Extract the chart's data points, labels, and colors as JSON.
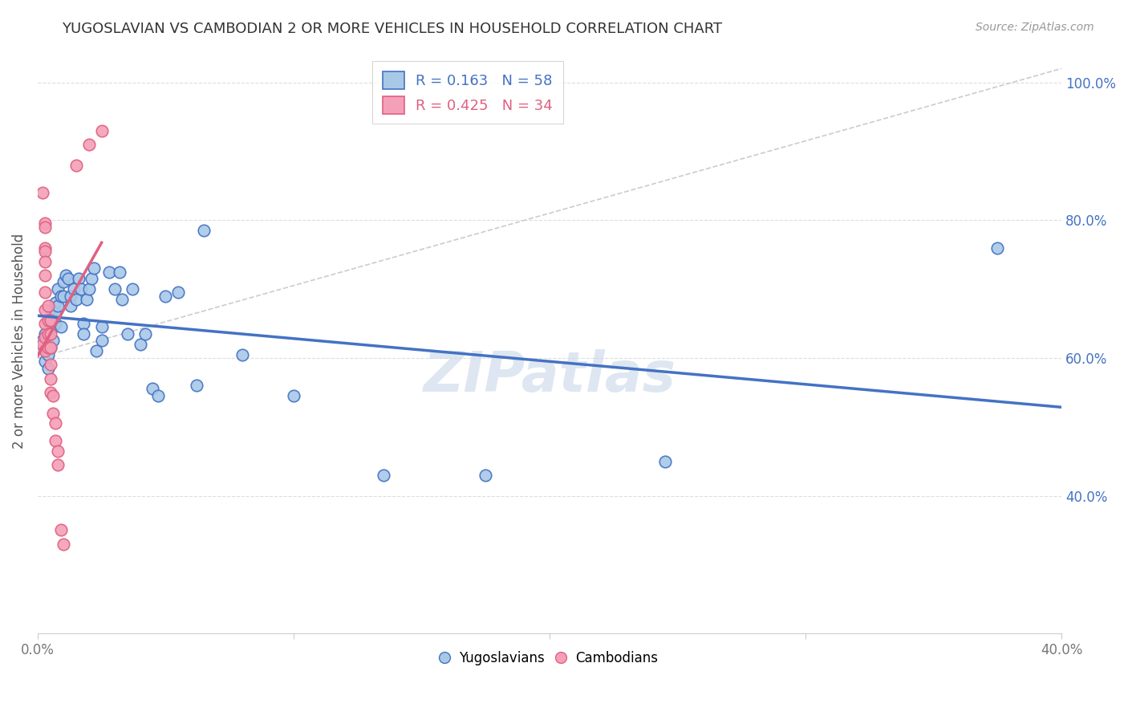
{
  "title": "YUGOSLAVIAN VS CAMBODIAN 2 OR MORE VEHICLES IN HOUSEHOLD CORRELATION CHART",
  "source": "Source: ZipAtlas.com",
  "ylabel": "2 or more Vehicles in Household",
  "xlim": [
    0.0,
    0.4
  ],
  "ylim": [
    0.2,
    1.05
  ],
  "yticks_right": [
    1.0,
    0.8,
    0.6,
    0.4
  ],
  "yticklabels_right": [
    "100.0%",
    "80.0%",
    "60.0%",
    "40.0%"
  ],
  "legend1_r": "0.163",
  "legend1_n": "58",
  "legend2_r": "0.425",
  "legend2_n": "34",
  "legend_labels": [
    "Yugoslavians",
    "Cambodians"
  ],
  "blue_color": "#A8C8E8",
  "pink_color": "#F4A0B8",
  "blue_line_color": "#4472C4",
  "pink_line_color": "#E06080",
  "diagonal_color": "#CCCCCC",
  "watermark": "ZIPatlas",
  "watermark_color": "#C8D8E8",
  "blue_dots": [
    [
      0.001,
      0.615
    ],
    [
      0.002,
      0.625
    ],
    [
      0.003,
      0.635
    ],
    [
      0.003,
      0.595
    ],
    [
      0.004,
      0.62
    ],
    [
      0.004,
      0.605
    ],
    [
      0.004,
      0.585
    ],
    [
      0.005,
      0.645
    ],
    [
      0.005,
      0.615
    ],
    [
      0.005,
      0.66
    ],
    [
      0.006,
      0.645
    ],
    [
      0.006,
      0.625
    ],
    [
      0.007,
      0.68
    ],
    [
      0.007,
      0.665
    ],
    [
      0.007,
      0.65
    ],
    [
      0.008,
      0.7
    ],
    [
      0.008,
      0.675
    ],
    [
      0.009,
      0.69
    ],
    [
      0.009,
      0.645
    ],
    [
      0.01,
      0.71
    ],
    [
      0.01,
      0.69
    ],
    [
      0.011,
      0.72
    ],
    [
      0.012,
      0.715
    ],
    [
      0.013,
      0.69
    ],
    [
      0.013,
      0.675
    ],
    [
      0.014,
      0.7
    ],
    [
      0.015,
      0.685
    ],
    [
      0.016,
      0.715
    ],
    [
      0.017,
      0.7
    ],
    [
      0.018,
      0.65
    ],
    [
      0.018,
      0.635
    ],
    [
      0.019,
      0.685
    ],
    [
      0.02,
      0.7
    ],
    [
      0.021,
      0.715
    ],
    [
      0.022,
      0.73
    ],
    [
      0.023,
      0.61
    ],
    [
      0.025,
      0.645
    ],
    [
      0.025,
      0.625
    ],
    [
      0.028,
      0.725
    ],
    [
      0.03,
      0.7
    ],
    [
      0.032,
      0.725
    ],
    [
      0.033,
      0.685
    ],
    [
      0.035,
      0.635
    ],
    [
      0.037,
      0.7
    ],
    [
      0.04,
      0.62
    ],
    [
      0.042,
      0.635
    ],
    [
      0.045,
      0.555
    ],
    [
      0.047,
      0.545
    ],
    [
      0.05,
      0.69
    ],
    [
      0.055,
      0.695
    ],
    [
      0.062,
      0.56
    ],
    [
      0.065,
      0.785
    ],
    [
      0.08,
      0.605
    ],
    [
      0.1,
      0.545
    ],
    [
      0.135,
      0.43
    ],
    [
      0.175,
      0.43
    ],
    [
      0.245,
      0.45
    ],
    [
      0.375,
      0.76
    ]
  ],
  "pink_dots": [
    [
      0.002,
      0.84
    ],
    [
      0.002,
      0.62
    ],
    [
      0.003,
      0.795
    ],
    [
      0.003,
      0.79
    ],
    [
      0.003,
      0.76
    ],
    [
      0.003,
      0.755
    ],
    [
      0.003,
      0.74
    ],
    [
      0.003,
      0.72
    ],
    [
      0.003,
      0.695
    ],
    [
      0.003,
      0.67
    ],
    [
      0.003,
      0.65
    ],
    [
      0.003,
      0.63
    ],
    [
      0.003,
      0.61
    ],
    [
      0.004,
      0.675
    ],
    [
      0.004,
      0.655
    ],
    [
      0.004,
      0.635
    ],
    [
      0.004,
      0.615
    ],
    [
      0.005,
      0.655
    ],
    [
      0.005,
      0.635
    ],
    [
      0.005,
      0.615
    ],
    [
      0.005,
      0.59
    ],
    [
      0.005,
      0.57
    ],
    [
      0.005,
      0.55
    ],
    [
      0.006,
      0.545
    ],
    [
      0.006,
      0.52
    ],
    [
      0.007,
      0.505
    ],
    [
      0.007,
      0.48
    ],
    [
      0.008,
      0.465
    ],
    [
      0.008,
      0.445
    ],
    [
      0.009,
      0.35
    ],
    [
      0.01,
      0.33
    ],
    [
      0.015,
      0.88
    ],
    [
      0.02,
      0.91
    ],
    [
      0.025,
      0.93
    ]
  ]
}
